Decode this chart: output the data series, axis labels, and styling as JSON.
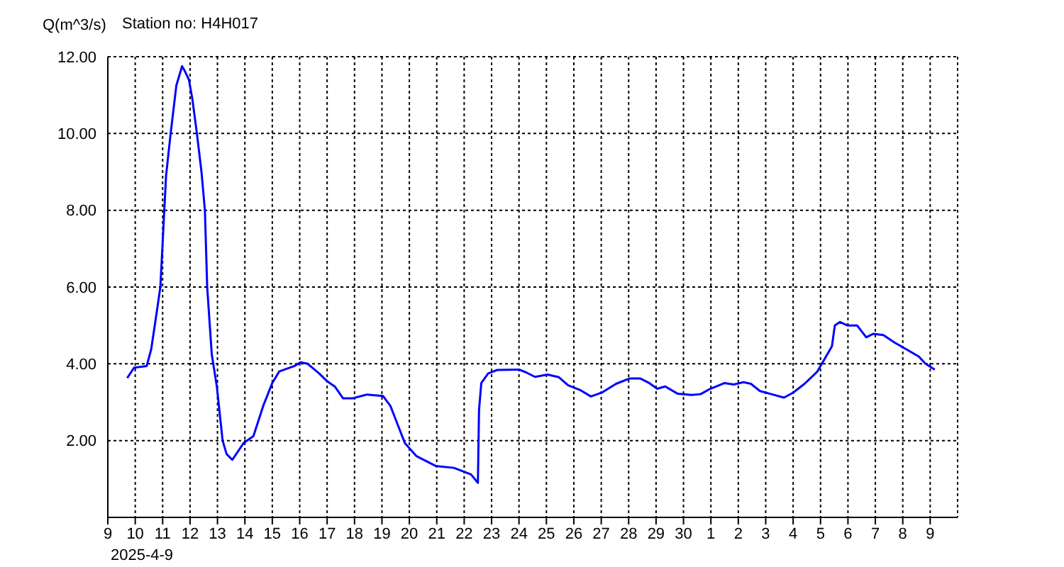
{
  "chart_data": {
    "type": "line",
    "title": "Station no: H4H017",
    "ylabel": "Q(m^3/s)",
    "xlabel": "2025-4-9",
    "grid": true,
    "xlim": [
      "2025-04-09",
      "2025-05-10"
    ],
    "xticks": [
      {
        "value": "2025-04-09",
        "label": "9"
      },
      {
        "value": "2025-04-10",
        "label": "10"
      },
      {
        "value": "2025-04-11",
        "label": "11"
      },
      {
        "value": "2025-04-12",
        "label": "12"
      },
      {
        "value": "2025-04-13",
        "label": "13"
      },
      {
        "value": "2025-04-14",
        "label": "14"
      },
      {
        "value": "2025-04-15",
        "label": "15"
      },
      {
        "value": "2025-04-16",
        "label": "16"
      },
      {
        "value": "2025-04-17",
        "label": "17"
      },
      {
        "value": "2025-04-18",
        "label": "18"
      },
      {
        "value": "2025-04-19",
        "label": "19"
      },
      {
        "value": "2025-04-20",
        "label": "20"
      },
      {
        "value": "2025-04-21",
        "label": "21"
      },
      {
        "value": "2025-04-22",
        "label": "22"
      },
      {
        "value": "2025-04-23",
        "label": "23"
      },
      {
        "value": "2025-04-24",
        "label": "24"
      },
      {
        "value": "2025-04-25",
        "label": "25"
      },
      {
        "value": "2025-04-26",
        "label": "26"
      },
      {
        "value": "2025-04-27",
        "label": "27"
      },
      {
        "value": "2025-04-28",
        "label": "28"
      },
      {
        "value": "2025-04-29",
        "label": "29"
      },
      {
        "value": "2025-04-30",
        "label": "30"
      },
      {
        "value": "2025-05-01",
        "label": "1"
      },
      {
        "value": "2025-05-02",
        "label": "2"
      },
      {
        "value": "2025-05-03",
        "label": "3"
      },
      {
        "value": "2025-05-04",
        "label": "4"
      },
      {
        "value": "2025-05-05",
        "label": "5"
      },
      {
        "value": "2025-05-06",
        "label": "6"
      },
      {
        "value": "2025-05-07",
        "label": "7"
      },
      {
        "value": "2025-05-08",
        "label": "8"
      },
      {
        "value": "2025-05-09",
        "label": "9"
      }
    ],
    "ylim": [
      0,
      12
    ],
    "yticks": [
      {
        "value": 0,
        "label": null
      },
      {
        "value": 2,
        "label": "2.00"
      },
      {
        "value": 4,
        "label": "4.00"
      },
      {
        "value": 6,
        "label": "6.00"
      },
      {
        "value": 8,
        "label": "8.00"
      },
      {
        "value": 10,
        "label": "10.00"
      },
      {
        "value": 12,
        "label": "12.00"
      }
    ],
    "x": [
      "2025-04-09T17:00",
      "2025-04-09T23:00",
      "2025-04-10T10:00",
      "2025-04-10T14:00",
      "2025-04-10T19:00",
      "2025-04-10T22:00",
      "2025-04-11T03:00",
      "2025-04-11T07:00",
      "2025-04-11T12:00",
      "2025-04-11T17:00",
      "2025-04-11T19:00",
      "2025-04-11T23:00",
      "2025-04-12T02:00",
      "2025-04-12T06:00",
      "2025-04-12T10:00",
      "2025-04-12T13:00",
      "2025-04-12T15:00",
      "2025-04-12T19:00",
      "2025-04-12T23:30",
      "2025-04-13T04:30",
      "2025-04-13T08:00",
      "2025-04-13T13:00",
      "2025-04-13T23:00",
      "2025-04-14T07:30",
      "2025-04-14T16:00",
      "2025-04-15T00:00",
      "2025-04-15T06:00",
      "2025-04-15T19:00",
      "2025-04-16T01:00",
      "2025-04-16T07:00",
      "2025-04-16T17:00",
      "2025-04-16T23:30",
      "2025-04-17T07:00",
      "2025-04-17T14:00",
      "2025-04-17T22:00",
      "2025-04-18T11:00",
      "2025-04-19T01:00",
      "2025-04-19T07:30",
      "2025-04-19T14:00",
      "2025-04-19T20:00",
      "2025-04-20T06:00",
      "2025-04-20T23:00",
      "2025-04-21T15:00",
      "2025-04-22T06:00",
      "2025-04-22T12:00",
      "2025-04-22T13:00",
      "2025-04-22T15:00",
      "2025-04-22T21:00",
      "2025-04-23T05:00",
      "2025-04-24T00:00",
      "2025-04-24T06:00",
      "2025-04-24T14:00",
      "2025-04-25T01:00",
      "2025-04-25T11:00",
      "2025-04-25T19:00",
      "2025-04-26T06:00",
      "2025-04-26T15:00",
      "2025-04-27T00:30",
      "2025-04-27T13:00",
      "2025-04-28T01:00",
      "2025-04-28T10:00",
      "2025-04-28T18:00",
      "2025-04-29T01:00",
      "2025-04-29T08:00",
      "2025-04-29T19:00",
      "2025-04-30T07:00",
      "2025-04-30T15:00",
      "2025-04-30T23:30",
      "2025-05-01T12:00",
      "2025-05-01T20:00",
      "2025-05-02T04:30",
      "2025-05-02T11:00",
      "2025-05-02T19:00",
      "2025-05-03T05:00",
      "2025-05-03T16:00",
      "2025-05-04T00:00",
      "2025-05-04T10:00",
      "2025-05-04T21:00",
      "2025-05-05T03:00",
      "2025-05-05T10:00",
      "2025-05-05T12:30",
      "2025-05-05T17:00",
      "2025-05-05T23:30",
      "2025-05-06T08:00",
      "2025-05-06T16:00",
      "2025-05-06T22:00",
      "2025-05-07T07:00",
      "2025-05-07T17:00",
      "2025-05-08T03:00",
      "2025-05-08T14:00",
      "2025-05-08T20:00",
      "2025-05-09T04:00"
    ],
    "series": [
      {
        "color": "#0000ff",
        "values": [
          3.63,
          3.9,
          3.94,
          4.38,
          5.38,
          6.0,
          8.9,
          10.0,
          11.25,
          11.75,
          11.65,
          11.4,
          10.9,
          10.0,
          9.0,
          8.0,
          6.0,
          4.25,
          3.4,
          2.0,
          1.65,
          1.5,
          1.94,
          2.12,
          2.9,
          3.5,
          3.8,
          3.94,
          4.04,
          4.0,
          3.75,
          3.56,
          3.4,
          3.1,
          3.1,
          3.2,
          3.16,
          2.9,
          2.4,
          1.94,
          1.6,
          1.34,
          1.29,
          1.12,
          0.9,
          2.8,
          3.5,
          3.75,
          3.84,
          3.85,
          3.78,
          3.66,
          3.72,
          3.65,
          3.44,
          3.31,
          3.15,
          3.25,
          3.48,
          3.62,
          3.62,
          3.5,
          3.35,
          3.41,
          3.22,
          3.19,
          3.21,
          3.35,
          3.5,
          3.46,
          3.52,
          3.48,
          3.29,
          3.21,
          3.12,
          3.25,
          3.48,
          3.79,
          4.1,
          4.46,
          5.0,
          5.09,
          5.0,
          5.0,
          4.69,
          4.78,
          4.75,
          4.55,
          4.38,
          4.19,
          4.0,
          3.85
        ]
      }
    ]
  }
}
